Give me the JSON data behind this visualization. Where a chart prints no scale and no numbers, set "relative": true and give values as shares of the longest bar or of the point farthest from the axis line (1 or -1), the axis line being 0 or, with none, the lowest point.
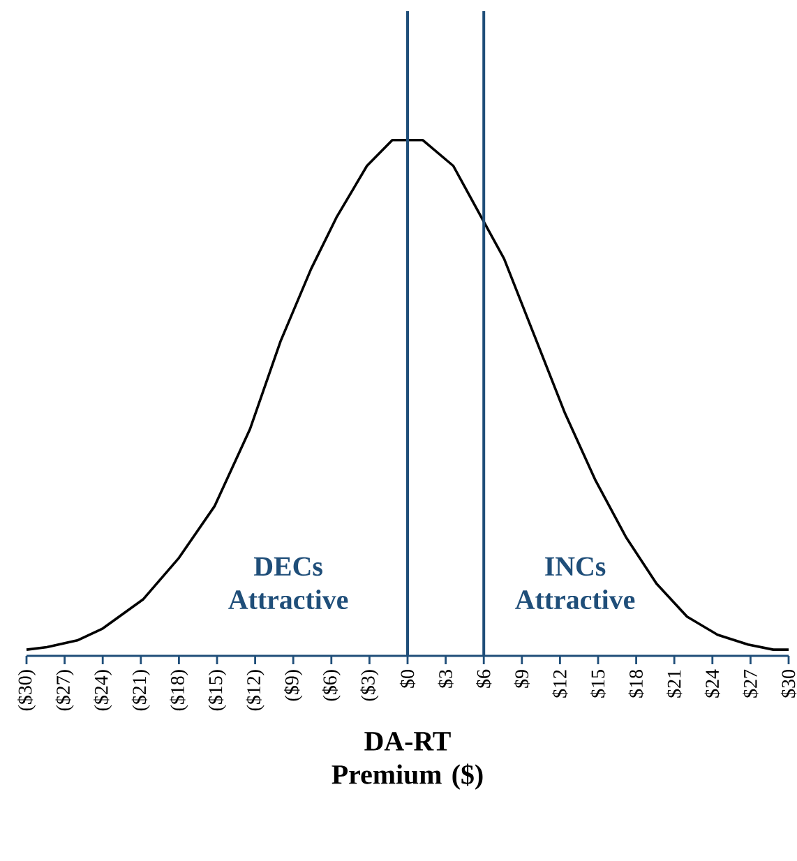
{
  "chart_data": {
    "type": "line",
    "relative": true,
    "xlabel": "DA-RT Premium ($)",
    "x": [
      -30,
      -28.4,
      -26,
      -24,
      -20.8,
      -18,
      -15.2,
      -12.4,
      -10,
      -7.6,
      -5.6,
      -3.2,
      -1.2,
      1.2,
      3.6,
      5.6,
      7.6,
      10,
      12.4,
      14.8,
      17.2,
      19.6,
      22,
      24.4,
      26.8,
      28.8,
      30
    ],
    "series": [
      {
        "color": "#000000",
        "values": [
          0.012,
          0.017,
          0.03,
          0.053,
          0.11,
          0.19,
          0.29,
          0.44,
          0.61,
          0.75,
          0.85,
          0.95,
          1.0,
          1.0,
          0.95,
          0.86,
          0.77,
          0.62,
          0.47,
          0.34,
          0.23,
          0.14,
          0.076,
          0.041,
          0.022,
          0.012,
          0.012
        ]
      }
    ],
    "xlim": [
      -30,
      30
    ],
    "xticks": [
      {
        "value": -30,
        "label": "($30)"
      },
      {
        "value": -27,
        "label": "($27)"
      },
      {
        "value": -24,
        "label": "($24)"
      },
      {
        "value": -21,
        "label": "($21)"
      },
      {
        "value": -18,
        "label": "($18)"
      },
      {
        "value": -15,
        "label": "($15)"
      },
      {
        "value": -12,
        "label": "($12)"
      },
      {
        "value": -9,
        "label": "($9)"
      },
      {
        "value": -6,
        "label": "($6)"
      },
      {
        "value": -3,
        "label": "($3)"
      },
      {
        "value": 0,
        "label": "$0"
      },
      {
        "value": 3,
        "label": "$3"
      },
      {
        "value": 6,
        "label": "$6"
      },
      {
        "value": 9,
        "label": "$9"
      },
      {
        "value": 12,
        "label": "$12"
      },
      {
        "value": 15,
        "label": "$15"
      },
      {
        "value": 18,
        "label": "$18"
      },
      {
        "value": 21,
        "label": "$21"
      },
      {
        "value": 24,
        "label": "$24"
      },
      {
        "value": 27,
        "label": "$27"
      },
      {
        "value": 30,
        "label": "$30"
      }
    ],
    "ref_lines": [
      {
        "axis": "x",
        "value": 0,
        "color": "#1f4e79"
      },
      {
        "axis": "x",
        "value": 6,
        "color": "#1f4e79"
      }
    ],
    "annotations": [
      "DECs Attractive",
      "INCs Attractive"
    ]
  }
}
